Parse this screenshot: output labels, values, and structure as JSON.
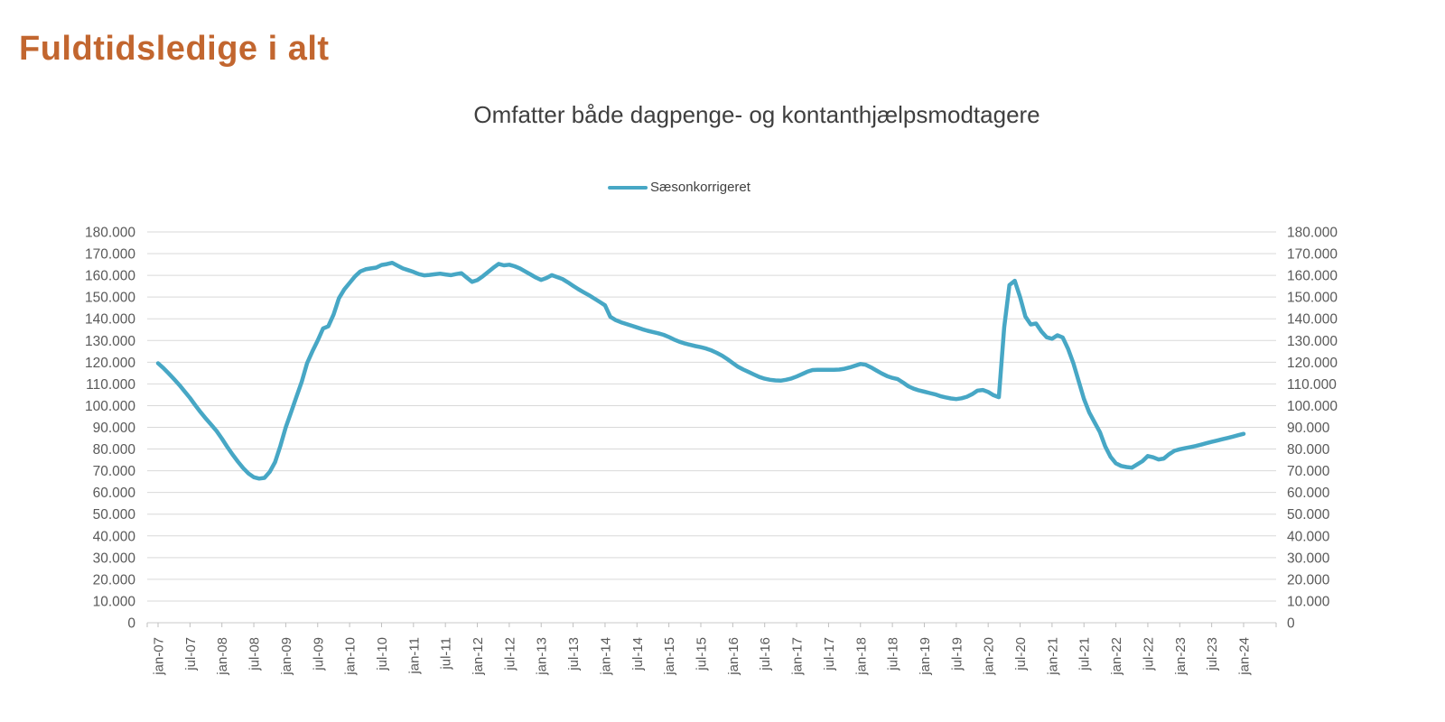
{
  "page": {
    "title": "Fuldtidsledige i alt"
  },
  "colors": {
    "title_orange": "#C2662F",
    "line_teal": "#47A7C5",
    "gridline": "#D9D9D9",
    "axis_line": "#C9C9C9",
    "tick_mark": "#BFBFBF",
    "axis_text": "#595959",
    "subtitle_text": "#3F3F3F"
  },
  "chart_data": {
    "type": "line",
    "title": "Omfatter både dagpenge- og kontanthjælpsmodtagere",
    "legend_position": "top-center",
    "grid": "horizontal",
    "dual_y_axis": true,
    "ylim": [
      0,
      180000
    ],
    "y_tick_step": 10000,
    "y_tick_labels": [
      "0",
      "10.000",
      "20.000",
      "30.000",
      "40.000",
      "50.000",
      "60.000",
      "70.000",
      "80.000",
      "90.000",
      "100.000",
      "110.000",
      "120.000",
      "130.000",
      "140.000",
      "150.000",
      "160.000",
      "170.000",
      "180.000"
    ],
    "x_tick_every": 6,
    "x_tick_labels": [
      "jan-07",
      "jul-07",
      "jan-08",
      "jul-08",
      "jan-09",
      "jul-09",
      "jan-10",
      "jul-10",
      "jan-11",
      "jul-11",
      "jan-12",
      "jul-12",
      "jan-13",
      "jul-13",
      "jan-14",
      "jul-14",
      "jan-15",
      "jul-15",
      "jan-16",
      "jul-16",
      "jan-17",
      "jul-17",
      "jan-18",
      "jul-18",
      "jan-19",
      "jul-19",
      "jan-20",
      "jul-20",
      "jan-21",
      "jul-21",
      "jan-22",
      "jul-22",
      "jan-23",
      "jul-23",
      "jan-24"
    ],
    "frequency": "monthly",
    "x_start": "jan-07",
    "x_end": "jan-24",
    "series": [
      {
        "name": "Sæsonkorrigeret",
        "color": "#47A7C5",
        "values": [
          119500,
          117300,
          114800,
          112200,
          109500,
          106500,
          103500,
          100200,
          97000,
          94000,
          91200,
          88300,
          84800,
          81000,
          77500,
          74200,
          71200,
          68700,
          67000,
          66400,
          66700,
          69500,
          74000,
          81500,
          90000,
          97000,
          104000,
          111000,
          119500,
          125000,
          130000,
          135500,
          136500,
          142000,
          149500,
          153500,
          156500,
          159500,
          161800,
          162800,
          163200,
          163600,
          164800,
          165200,
          165800,
          164500,
          163200,
          162400,
          161600,
          160600,
          160000,
          160200,
          160500,
          160800,
          160400,
          160100,
          160600,
          161000,
          159000,
          157000,
          157800,
          159500,
          161500,
          163500,
          165300,
          164600,
          164900,
          164200,
          163200,
          161800,
          160400,
          159000,
          157900,
          158800,
          160100,
          159200,
          158300,
          156800,
          155200,
          153600,
          152200,
          150800,
          149300,
          147800,
          146200,
          140900,
          139400,
          138400,
          137600,
          136800,
          136000,
          135200,
          134500,
          133900,
          133300,
          132600,
          131600,
          130400,
          129400,
          128600,
          128000,
          127400,
          126900,
          126300,
          125400,
          124300,
          123000,
          121400,
          119600,
          117900,
          116600,
          115500,
          114300,
          113200,
          112400,
          111900,
          111600,
          111500,
          111900,
          112500,
          113400,
          114500,
          115600,
          116400,
          116500,
          116500,
          116500,
          116500,
          116600,
          117000,
          117600,
          118400,
          119200,
          118800,
          117600,
          116200,
          114800,
          113600,
          112800,
          112200,
          110600,
          108900,
          107800,
          107000,
          106400,
          105800,
          105200,
          104400,
          103800,
          103300,
          103000,
          103400,
          104100,
          105300,
          106900,
          107200,
          106300,
          104800,
          103900,
          136000,
          155500,
          157500,
          150000,
          141000,
          137400,
          137800,
          134200,
          131500,
          130800,
          132400,
          131400,
          126200,
          119500,
          111400,
          103100,
          96800,
          92300,
          87800,
          81200,
          76400,
          73400,
          72200,
          71700,
          71400,
          72900,
          74400,
          76800,
          76200,
          75200,
          75600,
          77600,
          79200,
          79900,
          80400,
          80900,
          81400,
          82000,
          82700,
          83300,
          83900,
          84500,
          85100,
          85700,
          86400,
          87000
        ]
      }
    ]
  }
}
